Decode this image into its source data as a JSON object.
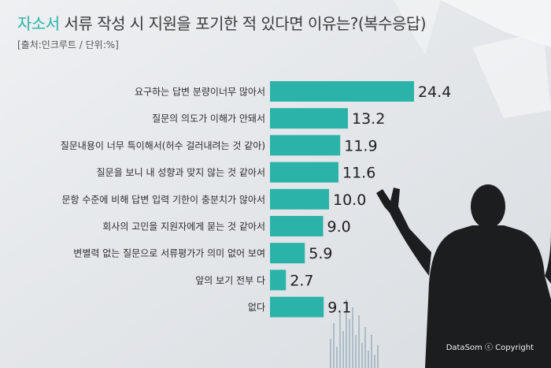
{
  "header": {
    "title_highlight": "자소서",
    "title_rest": " 서류 작성 시 지원을 포기한 적 있다면 이유는?(복수응답)",
    "source": "[출처:인크루트 / 단위:%]"
  },
  "footer": {
    "credit": "DataSom ⓒ Copyright"
  },
  "colors": {
    "bar": "#2bb3a9",
    "accent": "#2bb3a9",
    "silhouette": "#1b1d1f"
  },
  "chart_data": {
    "type": "bar",
    "orientation": "horizontal",
    "title": "자소서 서류 작성 시 지원을 포기한 적 있다면 이유는?(복수응답)",
    "categories": [
      "요구하는 답변 분량이너무 많아서",
      "질문의 의도가 이해가 안돼서",
      "질문내용이 너무 특이해서(허수 걸러내려는 것 같아)",
      "질문을 보니 내 성향과 맞지 않는 것 같아서",
      "문항 수준에 비해 답변 입력 기한이 충분치가 않아서",
      "회사의 고민을 지원자에게 묻는 것 같아서",
      "변별력 없는 질문으로 서류평가가 의미 없어 보여",
      "앞의 보기 전부 다",
      "없다"
    ],
    "values": [
      24.4,
      13.2,
      11.9,
      11.6,
      10.0,
      9.0,
      5.9,
      2.7,
      9.1
    ],
    "value_labels": [
      "24.4",
      "13.2",
      "11.9",
      "11.6",
      "10.0",
      "9.0",
      "5.9",
      "2.7",
      "9.1"
    ],
    "xlim": [
      0,
      24.4
    ],
    "grid": false,
    "legend": "none"
  }
}
